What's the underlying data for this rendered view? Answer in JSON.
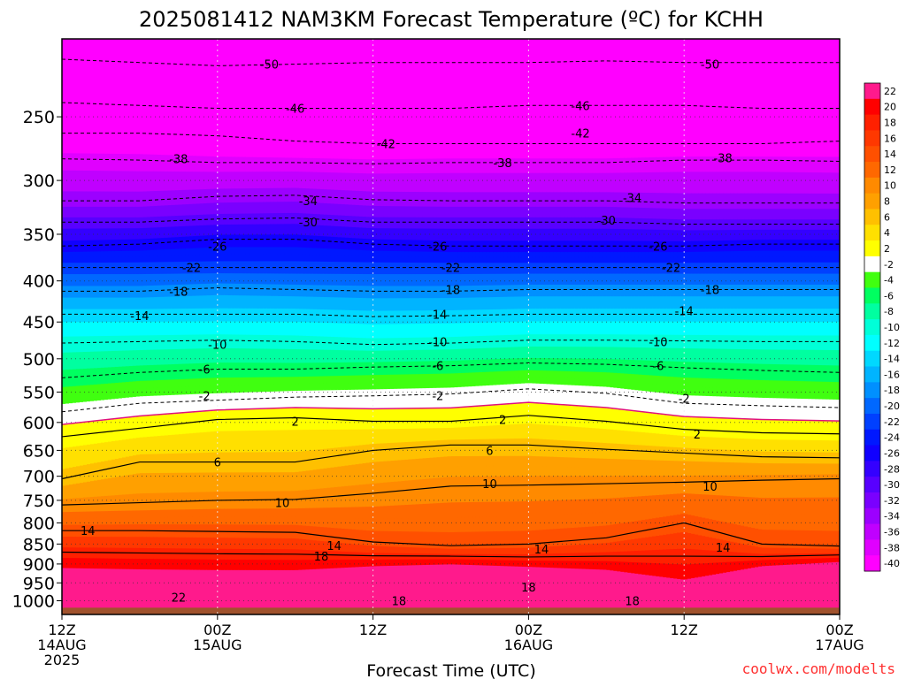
{
  "chart_data": {
    "type": "heatmap",
    "title": "2025081412 NAM3KM Forecast Temperature (ºC) for KCHH",
    "xlabel": "Forecast Time (UTC)",
    "ylabel": "",
    "credit": "coolwx.com/modelts",
    "colors": {
      "ground": "#a0522d",
      "freezing_line": "#e0107a",
      "contour": "#000000",
      "grid": "#aaaaaa"
    },
    "x_ticks": [
      {
        "hour": 0,
        "lines": [
          "12Z",
          "14AUG",
          "2025"
        ]
      },
      {
        "hour": 12,
        "lines": [
          "00Z",
          "15AUG"
        ]
      },
      {
        "hour": 24,
        "lines": [
          "12Z"
        ]
      },
      {
        "hour": 36,
        "lines": [
          "00Z",
          "16AUG"
        ]
      },
      {
        "hour": 48,
        "lines": [
          "12Z"
        ]
      },
      {
        "hour": 60,
        "lines": [
          "00Z",
          "17AUG"
        ]
      }
    ],
    "xlim_hours": [
      0,
      60
    ],
    "y_ticks": [
      "250",
      "300",
      "350",
      "400",
      "450",
      "500",
      "550",
      "600",
      "650",
      "700",
      "750",
      "800",
      "850",
      "900",
      "950",
      "1000"
    ],
    "y_tick_values": [
      250,
      300,
      350,
      400,
      450,
      500,
      550,
      600,
      650,
      700,
      750,
      800,
      850,
      900,
      950,
      1000
    ],
    "ylim_hpa": [
      200,
      1040
    ],
    "y_scale": "log",
    "y_reversed": true,
    "surface_pressure_hpa": 1020,
    "colorbar": {
      "labels": [
        "22",
        "20",
        "18",
        "16",
        "14",
        "12",
        "10",
        "8",
        "6",
        "4",
        "2",
        "-2",
        "-4",
        "-6",
        "-8",
        "-10",
        "-12",
        "-14",
        "-16",
        "-18",
        "-20",
        "-22",
        "-24",
        "-26",
        "-28",
        "-30",
        "-32",
        "-34",
        "-36",
        "-38",
        "-40"
      ],
      "colors": [
        "#ff1a8c",
        "#ff0000",
        "#ff2000",
        "#ff3800",
        "#ff5000",
        "#ff6800",
        "#ff8a00",
        "#ffa000",
        "#ffc000",
        "#ffe000",
        "#ffff00",
        "#ffffff",
        "#40ff10",
        "#00ff60",
        "#00ffa0",
        "#00ffd8",
        "#00ffff",
        "#00d8ff",
        "#00b4ff",
        "#0090ff",
        "#0068ff",
        "#0040ff",
        "#0018ff",
        "#1000ff",
        "#3400ff",
        "#5800ff",
        "#7a00ff",
        "#9c00ff",
        "#c000ff",
        "#e000ff",
        "#ff00ff"
      ]
    },
    "isotherm_levels_hpa": [
      {
        "temp": 18,
        "p": [
          870,
          872,
          874,
          875,
          879,
          880,
          882,
          880,
          880,
          881,
          877
        ]
      },
      {
        "temp": 14,
        "p": [
          818,
          818,
          820,
          822,
          845,
          854,
          850,
          835,
          800,
          850,
          855
        ]
      },
      {
        "temp": 10,
        "p": [
          760,
          755,
          750,
          748,
          735,
          720,
          718,
          715,
          712,
          708,
          705
        ]
      },
      {
        "temp": 6,
        "p": [
          705,
          672,
          672,
          672,
          650,
          640,
          640,
          648,
          655,
          662,
          664
        ]
      },
      {
        "temp": 2,
        "p": [
          625,
          610,
          595,
          592,
          598,
          598,
          588,
          598,
          612,
          618,
          620
        ]
      },
      {
        "temp": -2,
        "p": [
          582,
          568,
          563,
          558,
          556,
          553,
          545,
          552,
          568,
          572,
          575
        ]
      },
      {
        "temp": -6,
        "p": [
          528,
          520,
          515,
          515,
          512,
          510,
          506,
          508,
          513,
          517,
          520
        ]
      },
      {
        "temp": -10,
        "p": [
          478,
          476,
          474,
          476,
          480,
          478,
          474,
          474,
          475,
          476,
          476
        ]
      },
      {
        "temp": -14,
        "p": [
          440,
          440,
          440,
          440,
          443,
          442,
          440,
          440,
          440,
          440,
          440
        ]
      },
      {
        "temp": -18,
        "p": [
          412,
          412,
          408,
          410,
          412,
          412,
          410,
          410,
          410,
          410,
          410
        ]
      },
      {
        "temp": -22,
        "p": [
          385,
          385,
          385,
          385,
          385,
          385,
          385,
          385,
          385,
          385,
          385
        ]
      },
      {
        "temp": -26,
        "p": [
          362,
          360,
          355,
          355,
          360,
          362,
          362,
          362,
          362,
          360,
          360
        ]
      },
      {
        "temp": -30,
        "p": [
          338,
          338,
          335,
          334,
          338,
          338,
          338,
          338,
          340,
          340,
          340
        ]
      },
      {
        "temp": -34,
        "p": [
          318,
          318,
          314,
          313,
          317,
          318,
          318,
          318,
          320,
          320,
          320
        ]
      },
      {
        "temp": -38,
        "p": [
          282,
          283,
          285,
          285,
          286,
          285,
          285,
          285,
          283,
          283,
          284
        ]
      },
      {
        "temp": -42,
        "p": [
          262,
          262,
          264,
          268,
          270,
          270,
          270,
          270,
          270,
          270,
          268
        ]
      },
      {
        "temp": -46,
        "p": [
          240,
          242,
          244,
          244,
          244,
          244,
          242,
          242,
          242,
          244,
          244
        ]
      },
      {
        "temp": -50,
        "p": [
          212,
          214,
          216,
          215,
          214,
          214,
          214,
          213,
          214,
          214,
          214
        ]
      }
    ],
    "contour_labels": [
      {
        "text": "-50",
        "hour": 16,
        "p": 215
      },
      {
        "text": "-50",
        "hour": 50,
        "p": 215
      },
      {
        "text": "-46",
        "hour": 18,
        "p": 244
      },
      {
        "text": "-46",
        "hour": 40,
        "p": 242
      },
      {
        "text": "-42",
        "hour": 25,
        "p": 270
      },
      {
        "text": "-42",
        "hour": 40,
        "p": 262
      },
      {
        "text": "-38",
        "hour": 9,
        "p": 282
      },
      {
        "text": "-38",
        "hour": 34,
        "p": 285
      },
      {
        "text": "-38",
        "hour": 51,
        "p": 281
      },
      {
        "text": "-34",
        "hour": 19,
        "p": 318
      },
      {
        "text": "-34",
        "hour": 44,
        "p": 315
      },
      {
        "text": "-30",
        "hour": 19,
        "p": 338
      },
      {
        "text": "-30",
        "hour": 42,
        "p": 336
      },
      {
        "text": "-26",
        "hour": 12,
        "p": 362
      },
      {
        "text": "-26",
        "hour": 29,
        "p": 362
      },
      {
        "text": "-26",
        "hour": 46,
        "p": 362
      },
      {
        "text": "-22",
        "hour": 10,
        "p": 385
      },
      {
        "text": "-22",
        "hour": 30,
        "p": 385
      },
      {
        "text": "-22",
        "hour": 47,
        "p": 385
      },
      {
        "text": "-18",
        "hour": 9,
        "p": 412
      },
      {
        "text": "-18",
        "hour": 30,
        "p": 410
      },
      {
        "text": "-18",
        "hour": 50,
        "p": 410
      },
      {
        "text": "-14",
        "hour": 6,
        "p": 442
      },
      {
        "text": "-14",
        "hour": 29,
        "p": 440
      },
      {
        "text": "-14",
        "hour": 48,
        "p": 436
      },
      {
        "text": "-10",
        "hour": 12,
        "p": 480
      },
      {
        "text": "-10",
        "hour": 29,
        "p": 476
      },
      {
        "text": "-10",
        "hour": 46,
        "p": 476
      },
      {
        "text": "-6",
        "hour": 11,
        "p": 515
      },
      {
        "text": "-6",
        "hour": 29,
        "p": 510
      },
      {
        "text": "-6",
        "hour": 46,
        "p": 510
      },
      {
        "text": "-2",
        "hour": 11,
        "p": 556
      },
      {
        "text": "-2",
        "hour": 29,
        "p": 556
      },
      {
        "text": "-2",
        "hour": 48,
        "p": 560
      },
      {
        "text": "2",
        "hour": 18,
        "p": 598
      },
      {
        "text": "2",
        "hour": 34,
        "p": 595
      },
      {
        "text": "2",
        "hour": 49,
        "p": 620
      },
      {
        "text": "6",
        "hour": 12,
        "p": 672
      },
      {
        "text": "6",
        "hour": 33,
        "p": 650
      },
      {
        "text": "10",
        "hour": 17,
        "p": 755
      },
      {
        "text": "10",
        "hour": 33,
        "p": 715
      },
      {
        "text": "10",
        "hour": 50,
        "p": 720
      },
      {
        "text": "14",
        "hour": 2,
        "p": 818
      },
      {
        "text": "14",
        "hour": 21,
        "p": 854
      },
      {
        "text": "14",
        "hour": 37,
        "p": 862
      },
      {
        "text": "14",
        "hour": 51,
        "p": 858
      },
      {
        "text": "18",
        "hour": 20,
        "p": 880
      },
      {
        "text": "18",
        "hour": 36,
        "p": 962
      },
      {
        "text": "18",
        "hour": 26,
        "p": 1000
      },
      {
        "text": "18",
        "hour": 44,
        "p": 1000
      },
      {
        "text": "22",
        "hour": 9,
        "p": 990
      }
    ]
  }
}
